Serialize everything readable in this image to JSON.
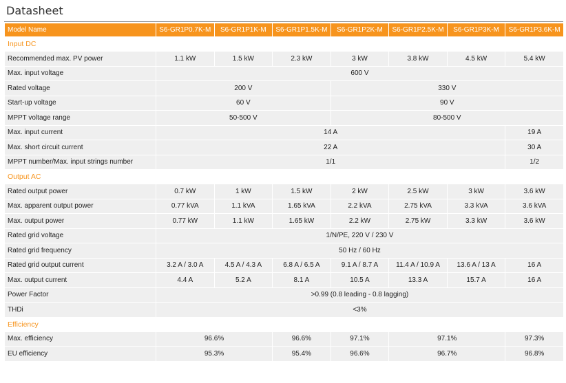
{
  "title": "Datasheet",
  "header": {
    "label": "Model Name",
    "models": [
      "S6-GR1P0.7K-M",
      "S6-GR1P1K-M",
      "S6-GR1P1.5K-M",
      "S6-GR1P2K-M",
      "S6-GR1P2.5K-M",
      "S6-GR1P3K-M",
      "S6-GR1P3.6K-M"
    ]
  },
  "sections": [
    {
      "title": "Input DC",
      "rows": [
        {
          "label": "Recommended max. PV power",
          "cells": [
            {
              "v": "1.1 kW",
              "span": 1
            },
            {
              "v": "1.5 kW",
              "span": 1
            },
            {
              "v": "2.3 kW",
              "span": 1
            },
            {
              "v": "3 kW",
              "span": 1
            },
            {
              "v": "3.8 kW",
              "span": 1
            },
            {
              "v": "4.5 kW",
              "span": 1
            },
            {
              "v": "5.4 kW",
              "span": 1
            }
          ]
        },
        {
          "label": "Max. input voltage",
          "cells": [
            {
              "v": "600 V",
              "span": 7
            }
          ]
        },
        {
          "label": "Rated voltage",
          "cells": [
            {
              "v": "200 V",
              "span": 3
            },
            {
              "v": "330 V",
              "span": 4
            }
          ]
        },
        {
          "label": "Start-up voltage",
          "cells": [
            {
              "v": "60 V",
              "span": 3
            },
            {
              "v": "90 V",
              "span": 4
            }
          ]
        },
        {
          "label": "MPPT voltage range",
          "cells": [
            {
              "v": "50-500 V",
              "span": 3
            },
            {
              "v": "80-500 V",
              "span": 4
            }
          ]
        },
        {
          "label": "Max. input current",
          "cells": [
            {
              "v": "14 A",
              "span": 6
            },
            {
              "v": "19 A",
              "span": 1
            }
          ]
        },
        {
          "label": "Max. short circuit current",
          "cells": [
            {
              "v": "22 A",
              "span": 6
            },
            {
              "v": "30 A",
              "span": 1
            }
          ]
        },
        {
          "label": "MPPT number/Max. input strings number",
          "cells": [
            {
              "v": "1/1",
              "span": 6
            },
            {
              "v": "1/2",
              "span": 1
            }
          ]
        }
      ]
    },
    {
      "title": "Output AC",
      "rows": [
        {
          "label": "Rated output power",
          "cells": [
            {
              "v": "0.7 kW",
              "span": 1
            },
            {
              "v": "1 kW",
              "span": 1
            },
            {
              "v": "1.5 kW",
              "span": 1
            },
            {
              "v": "2 kW",
              "span": 1
            },
            {
              "v": "2.5 kW",
              "span": 1
            },
            {
              "v": "3 kW",
              "span": 1
            },
            {
              "v": "3.6 kW",
              "span": 1
            }
          ]
        },
        {
          "label": "Max. apparent output power",
          "cells": [
            {
              "v": "0.77 kVA",
              "span": 1
            },
            {
              "v": "1.1 kVA",
              "span": 1
            },
            {
              "v": "1.65 kVA",
              "span": 1
            },
            {
              "v": "2.2 kVA",
              "span": 1
            },
            {
              "v": "2.75 kVA",
              "span": 1
            },
            {
              "v": "3.3 kVA",
              "span": 1
            },
            {
              "v": "3.6 kVA",
              "span": 1
            }
          ]
        },
        {
          "label": "Max. output power",
          "cells": [
            {
              "v": "0.77 kW",
              "span": 1
            },
            {
              "v": "1.1 kW",
              "span": 1
            },
            {
              "v": "1.65 kW",
              "span": 1
            },
            {
              "v": "2.2 kW",
              "span": 1
            },
            {
              "v": "2.75 kW",
              "span": 1
            },
            {
              "v": "3.3 kW",
              "span": 1
            },
            {
              "v": "3.6 kW",
              "span": 1
            }
          ]
        },
        {
          "label": "Rated grid voltage",
          "cells": [
            {
              "v": "1/N/PE, 220 V / 230 V",
              "span": 7
            }
          ]
        },
        {
          "label": "Rated grid frequency",
          "cells": [
            {
              "v": "50 Hz / 60 Hz",
              "span": 7
            }
          ]
        },
        {
          "label": "Rated grid output current",
          "cells": [
            {
              "v": "3.2 A / 3.0 A",
              "span": 1
            },
            {
              "v": "4.5 A / 4.3 A",
              "span": 1
            },
            {
              "v": "6.8 A / 6.5 A",
              "span": 1
            },
            {
              "v": "9.1 A / 8.7 A",
              "span": 1
            },
            {
              "v": "11.4 A / 10.9 A",
              "span": 1
            },
            {
              "v": "13.6 A / 13 A",
              "span": 1
            },
            {
              "v": "16 A",
              "span": 1
            }
          ]
        },
        {
          "label": "Max. output current",
          "cells": [
            {
              "v": "4.4 A",
              "span": 1
            },
            {
              "v": "5.2 A",
              "span": 1
            },
            {
              "v": "8.1 A",
              "span": 1
            },
            {
              "v": "10.5 A",
              "span": 1
            },
            {
              "v": "13.3 A",
              "span": 1
            },
            {
              "v": "15.7 A",
              "span": 1
            },
            {
              "v": "16 A",
              "span": 1
            }
          ]
        },
        {
          "label": "Power Factor",
          "cells": [
            {
              "v": ">0.99 (0.8 leading - 0.8 lagging)",
              "span": 7
            }
          ]
        },
        {
          "label": "THDi",
          "cells": [
            {
              "v": "<3%",
              "span": 7
            }
          ]
        }
      ]
    },
    {
      "title": "Efficiency",
      "rows": [
        {
          "label": "Max. efficiency",
          "cells": [
            {
              "v": "96.6%",
              "span": 2
            },
            {
              "v": "96.6%",
              "span": 1
            },
            {
              "v": "97.1%",
              "span": 1
            },
            {
              "v": "97.1%",
              "span": 2
            },
            {
              "v": "97.3%",
              "span": 1
            }
          ]
        },
        {
          "label": "EU efficiency",
          "cells": [
            {
              "v": "95.3%",
              "span": 2
            },
            {
              "v": "95.4%",
              "span": 1
            },
            {
              "v": "96.6%",
              "span": 1
            },
            {
              "v": "96.7%",
              "span": 2
            },
            {
              "v": "96.8%",
              "span": 1
            }
          ]
        }
      ]
    }
  ]
}
